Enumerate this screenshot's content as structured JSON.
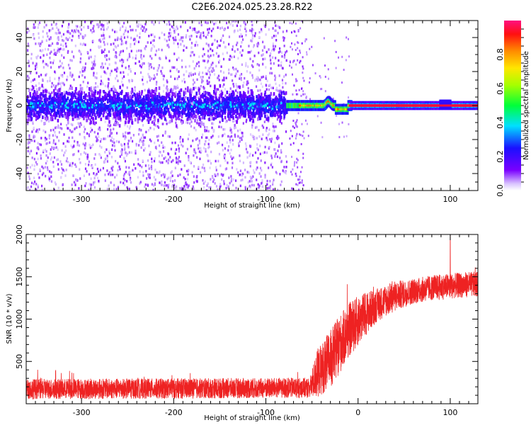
{
  "title": "C2E6.2024.025.23.28.R22",
  "colors": {
    "spectrogram_low": "#e4d6ff",
    "spectrogram_mid": "#4400ee",
    "spectrogram_ridge": "#ff2020",
    "snr_line": "#ee2222"
  },
  "chart_data": [
    {
      "type": "heatmap",
      "title": "",
      "xlabel": "Height of straight line (km)",
      "ylabel": "Frequency (Hz)",
      "xlim": [
        -360,
        130
      ],
      "ylim": [
        -50,
        50
      ],
      "xticks": [
        -300,
        -200,
        -100,
        0,
        100
      ],
      "yticks": [
        -40,
        -20,
        0,
        20,
        40
      ],
      "colorbar": {
        "label": "Normalized spectral amplitude",
        "range": [
          0.0,
          1.0
        ],
        "ticks": [
          "0.0",
          "0.2",
          "0.4",
          "0.6",
          "0.8"
        ],
        "colormap": "rainbow (white-violet → blue → cyan → green → yellow → red → magenta)"
      },
      "regions": [
        {
          "x_from": -360,
          "x_to": -78,
          "description": "broadband noise across all frequencies, dense band within ±15 Hz at amplitude 0.2-0.3"
        },
        {
          "x_from": -78,
          "x_to": -10,
          "description": "signal emerging near 0 Hz, amplitude 0.4-0.9 with dip to -3 Hz around -20 km"
        },
        {
          "x_from": -10,
          "x_to": 130,
          "description": "narrow line at ~0 Hz with normalized amplitude ~1.0"
        }
      ]
    },
    {
      "type": "line",
      "title": "",
      "xlabel": "Height of straight line (km)",
      "ylabel": "SNR (10 * v/v)",
      "xlim": [
        -360,
        130
      ],
      "ylim": [
        0,
        2000
      ],
      "xticks": [
        -300,
        -200,
        -100,
        0,
        100
      ],
      "yticks": [
        500,
        1000,
        1500,
        2000
      ],
      "series": [
        {
          "trend_x": [
            -360,
            -200,
            -100,
            -52,
            -45,
            -30,
            -20,
            -10,
            0,
            10,
            20,
            30,
            40,
            50,
            60,
            70,
            80,
            90,
            100,
            110,
            120,
            130
          ],
          "trend_y": [
            175,
            180,
            185,
            190,
            350,
            520,
            700,
            870,
            980,
            1080,
            1160,
            1220,
            1270,
            1300,
            1330,
            1350,
            1370,
            1380,
            1390,
            1400,
            1410,
            1410
          ],
          "noise_halfwidth": [
            120,
            120,
            120,
            120,
            280,
            350,
            350,
            320,
            300,
            250,
            200,
            190,
            180,
            160,
            150,
            150,
            150,
            150,
            150,
            150,
            150,
            150
          ],
          "peak_x": 100,
          "peak_y": 2000
        }
      ]
    }
  ]
}
